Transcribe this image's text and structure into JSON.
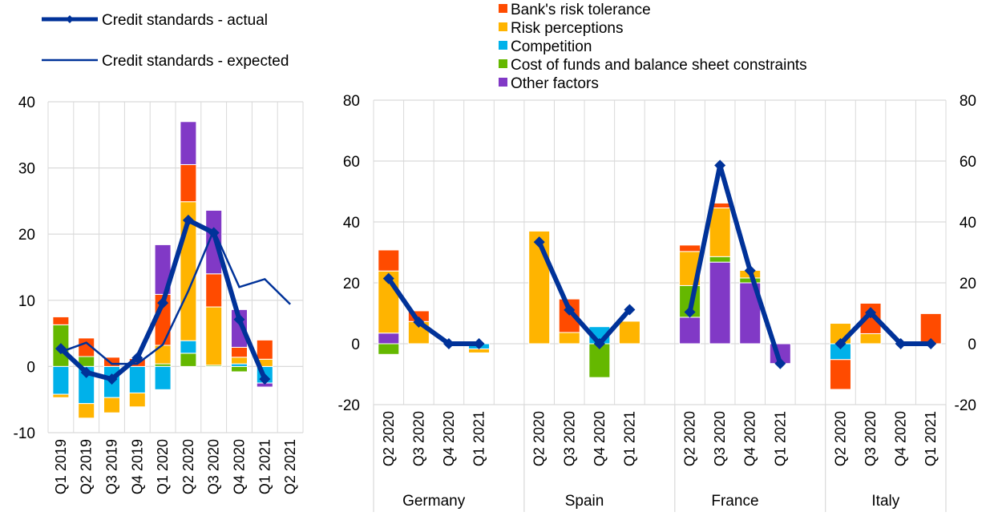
{
  "colors": {
    "banks_risk_tolerance": "#FF4B00",
    "risk_perceptions": "#FFB400",
    "competition": "#00B1EA",
    "cost_of_funds": "#65B800",
    "other_factors": "#8139C6",
    "line": "#003299",
    "grid": "#D9D9D9"
  },
  "chart_data": [
    {
      "type": "bar",
      "subtype": "stacked bar with line overlay",
      "title": "",
      "xlabel": "",
      "ylabel": "",
      "ylim": [
        -10,
        40
      ],
      "yticks": [
        "-10",
        "0",
        "10",
        "20",
        "30",
        "40"
      ],
      "grid": true,
      "categories": [
        "Q1 2019",
        "Q2 2019",
        "Q3 2019",
        "Q4 2019",
        "Q1 2020",
        "Q2 2020",
        "Q3 2020",
        "Q4 2020",
        "Q1 2021",
        "Q2 2021"
      ],
      "legend": {
        "placement": "top-left",
        "entries": [
          "Credit standards - actual",
          "Credit standards - expected"
        ]
      },
      "series": [
        {
          "name": "Cost of funds and balance sheet constraints",
          "color_key": "cost_of_funds",
          "values": [
            6.3,
            1.5,
            0,
            0,
            0.4,
            2.0,
            0.2,
            -0.8,
            0,
            null
          ]
        },
        {
          "name": "Competition",
          "color_key": "competition",
          "values": [
            -4.2,
            -5.6,
            -4.7,
            -4.0,
            -3.5,
            1.9,
            0,
            0.4,
            -2.5,
            null
          ]
        },
        {
          "name": "Risk perceptions",
          "color_key": "risk_perceptions",
          "values": [
            -0.5,
            -2.2,
            -2.3,
            -2.1,
            2.8,
            21.0,
            8.8,
            1.0,
            1.1,
            null
          ]
        },
        {
          "name": "Bank's risk tolerance",
          "color_key": "banks_risk_tolerance",
          "values": [
            1.2,
            2.8,
            1.4,
            1.2,
            7.7,
            5.6,
            5.0,
            1.5,
            2.9,
            null
          ]
        },
        {
          "name": "Other factors",
          "color_key": "other_factors",
          "values": [
            0,
            0,
            0,
            0,
            7.5,
            6.5,
            9.6,
            5.7,
            -0.6,
            null
          ]
        }
      ],
      "lines": [
        {
          "name": "Credit standards - actual",
          "style": "thick-markers",
          "values": [
            2.7,
            -0.9,
            -1.9,
            1.3,
            9.6,
            22.1,
            20.2,
            7.1,
            -1.9,
            null
          ]
        },
        {
          "name": "Credit standards - expected",
          "style": "thin",
          "values": [
            2.2,
            3.6,
            0.4,
            0.4,
            3.3,
            11.4,
            20.6,
            12.0,
            13.2,
            9.4
          ]
        }
      ]
    },
    {
      "type": "bar",
      "subtype": "stacked bar with line overlay, grouped by country",
      "title": "",
      "xlabel": "",
      "ylabel": "",
      "ylim": [
        -20,
        80
      ],
      "yticks": [
        "-20",
        "0",
        "20",
        "40",
        "60",
        "80"
      ],
      "grid": true,
      "legend": {
        "placement": "top-center",
        "entries": [
          "Bank's risk tolerance",
          "Risk perceptions",
          "Competition",
          "Cost of funds and balance sheet constraints",
          "Other factors"
        ]
      },
      "groups": [
        "Germany",
        "Spain",
        "France",
        "Italy"
      ],
      "categories": [
        "Q2 2020",
        "Q3 2020",
        "Q4 2020",
        "Q1 2021"
      ],
      "series": [
        {
          "name": "Other factors",
          "color_key": "other_factors",
          "values": [
            [
              3.5,
              0,
              0,
              0
            ],
            [
              0,
              0,
              0,
              0
            ],
            [
              8.7,
              26.8,
              20.0,
              -6.5
            ],
            [
              0,
              0,
              0,
              0
            ]
          ]
        },
        {
          "name": "Cost of funds and balance sheet constraints",
          "color_key": "cost_of_funds",
          "values": [
            [
              -3.5,
              0,
              0,
              0
            ],
            [
              0,
              0,
              -11.1,
              0
            ],
            [
              10.4,
              1.8,
              1.6,
              0
            ],
            [
              0,
              0,
              0,
              0
            ]
          ]
        },
        {
          "name": "Competition",
          "color_key": "competition",
          "values": [
            [
              0,
              0,
              0,
              -1.7
            ],
            [
              0,
              0,
              5.6,
              0
            ],
            [
              0,
              0,
              0,
              0
            ],
            [
              -5.2,
              0,
              0,
              0
            ]
          ]
        },
        {
          "name": "Risk perceptions",
          "color_key": "risk_perceptions",
          "values": [
            [
              20.4,
              7.3,
              0,
              -1.3
            ],
            [
              37.0,
              3.7,
              0,
              7.4
            ],
            [
              11.2,
              16.0,
              2.5,
              0
            ],
            [
              6.7,
              3.3,
              0,
              0
            ]
          ]
        },
        {
          "name": "Bank's risk tolerance",
          "color_key": "banks_risk_tolerance",
          "values": [
            [
              6.9,
              3.5,
              0,
              0
            ],
            [
              0,
              11.0,
              0,
              0
            ],
            [
              2.1,
              1.6,
              0,
              0
            ],
            [
              -9.8,
              10.0,
              0,
              9.9
            ]
          ]
        }
      ],
      "lines": [
        {
          "name": "Credit standards - actual",
          "values": [
            [
              21.4,
              7.1,
              0,
              0
            ],
            [
              33.4,
              11.1,
              0,
              11.2
            ],
            [
              10.4,
              58.6,
              24.0,
              -6.5
            ],
            [
              0,
              10.2,
              0,
              0
            ]
          ]
        }
      ]
    }
  ]
}
